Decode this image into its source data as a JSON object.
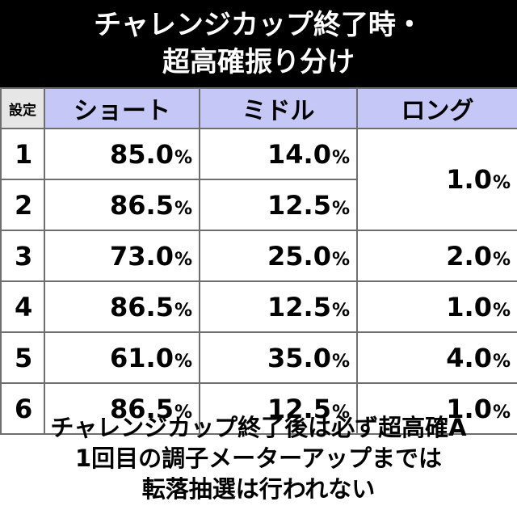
{
  "title": {
    "line1": "チャレンジカップ終了時・",
    "line2": "超高確振り分け"
  },
  "table": {
    "headers": [
      "設定",
      "ショート",
      "ミドル",
      "ロング"
    ],
    "percent_sign": "%",
    "rows": [
      {
        "setting": "1",
        "short": "85.0",
        "middle": "14.0"
      },
      {
        "setting": "2",
        "short": "86.5",
        "middle": "12.5"
      },
      {
        "setting": "3",
        "short": "73.0",
        "middle": "25.0",
        "long": "2.0"
      },
      {
        "setting": "4",
        "short": "86.5",
        "middle": "12.5",
        "long": "1.0"
      },
      {
        "setting": "5",
        "short": "61.0",
        "middle": "35.0",
        "long": "4.0"
      },
      {
        "setting": "6",
        "short": "86.5",
        "middle": "12.5",
        "long": "1.0"
      }
    ],
    "long_merged_1_2": "1.0"
  },
  "note": {
    "line1": "チャレンジカップ終了後は必ず超高確A",
    "line2": "1回目の調子メーターアップまでは",
    "line3": "転落抽選は行われない"
  }
}
